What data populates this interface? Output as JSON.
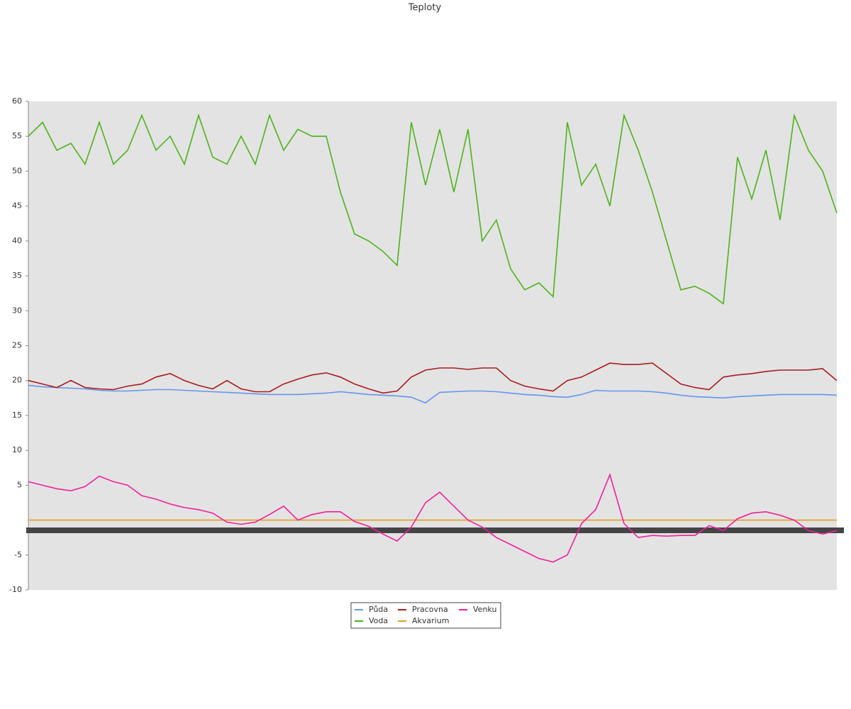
{
  "chart_data": {
    "type": "line",
    "title": "Teploty",
    "ylim": [
      -10,
      60
    ],
    "yticks": [
      60,
      55,
      50,
      45,
      40,
      35,
      30,
      25,
      20,
      15,
      10,
      5,
      -5,
      -10
    ],
    "legend": "bottom",
    "series": [
      {
        "name": "Půda",
        "color": "#6495ed",
        "values": [
          19.3,
          19.1,
          19,
          18.9,
          18.8,
          18.6,
          18.5,
          18.5,
          18.6,
          18.7,
          18.7,
          18.6,
          18.5,
          18.4,
          18.3,
          18.2,
          18.1,
          18,
          18,
          18,
          18.1,
          18.2,
          18.4,
          18.2,
          18,
          17.9,
          17.8,
          17.6,
          16.8,
          18.3,
          18.4,
          18.5,
          18.5,
          18.4,
          18.2,
          18,
          17.9,
          17.7,
          17.6,
          18,
          18.6,
          18.5,
          18.5,
          18.5,
          18.4,
          18.2,
          17.9,
          17.7,
          17.6,
          17.5,
          17.7,
          17.8,
          17.9,
          18,
          18,
          18,
          18,
          17.9
        ]
      },
      {
        "name": "Voda",
        "color": "#4cb31a",
        "values": [
          55,
          57,
          53,
          54,
          51,
          57,
          51,
          53,
          58,
          53,
          55,
          51,
          58,
          52,
          51,
          55,
          51,
          58,
          53,
          56,
          55,
          55,
          47,
          41,
          40,
          38.5,
          36.5,
          57,
          48,
          56,
          47,
          56,
          40,
          43,
          36,
          33,
          34,
          32,
          57,
          48,
          51,
          45,
          58,
          53,
          47,
          40,
          33,
          33.5,
          32.5,
          31,
          52,
          46,
          53,
          43,
          58,
          53,
          50,
          44
        ]
      },
      {
        "name": "Pracovna",
        "color": "#a81c1c",
        "values": [
          20,
          19.5,
          19,
          20,
          19,
          18.8,
          18.7,
          19.2,
          19.5,
          20.5,
          21,
          20,
          19.3,
          18.8,
          20,
          18.8,
          18.4,
          18.4,
          19.5,
          20.2,
          20.8,
          21.1,
          20.5,
          19.5,
          18.8,
          18.2,
          18.5,
          20.5,
          21.5,
          21.8,
          21.8,
          21.6,
          21.8,
          21.8,
          20,
          19.2,
          18.8,
          18.5,
          20,
          20.5,
          21.5,
          22.5,
          22.3,
          22.3,
          22.5,
          21,
          19.5,
          19,
          18.7,
          20.5,
          20.8,
          21,
          21.3,
          21.5,
          21.5,
          21.5,
          21.7,
          20
        ]
      },
      {
        "name": "Akvarium",
        "color": "#e0a020",
        "values": [
          0,
          0,
          0,
          0,
          0,
          0,
          0,
          0,
          0,
          0,
          0,
          0,
          0,
          0,
          0,
          0,
          0,
          0,
          0,
          0,
          0,
          0,
          0,
          0,
          0,
          0,
          0,
          0,
          0,
          0,
          0,
          0,
          0,
          0,
          0,
          0,
          0,
          0,
          0,
          0,
          0,
          0,
          0,
          0,
          0,
          0,
          0,
          0,
          0,
          0,
          0,
          0,
          0,
          0,
          0,
          0,
          0,
          0
        ]
      },
      {
        "name": "Venku",
        "color": "#f0209a",
        "values": [
          5.5,
          5,
          4.5,
          4.2,
          4.8,
          6.3,
          5.5,
          5,
          3.5,
          3,
          2.3,
          1.8,
          1.5,
          1,
          -0.3,
          -0.6,
          -0.3,
          0.8,
          2,
          0,
          0.8,
          1.2,
          1.2,
          -0.2,
          -0.9,
          -2,
          -3,
          -1,
          2.5,
          4,
          2,
          0,
          -1,
          -2.5,
          -3.5,
          -4.5,
          -5.5,
          -6,
          -5,
          -0.5,
          1.5,
          6.5,
          -0.5,
          -2.5,
          -2.2,
          -2.3,
          -2.2,
          -2.2,
          -0.8,
          -1.5,
          0.2,
          1,
          1.2,
          0.7,
          0,
          -1.5,
          -2,
          -1.5
        ]
      }
    ]
  }
}
